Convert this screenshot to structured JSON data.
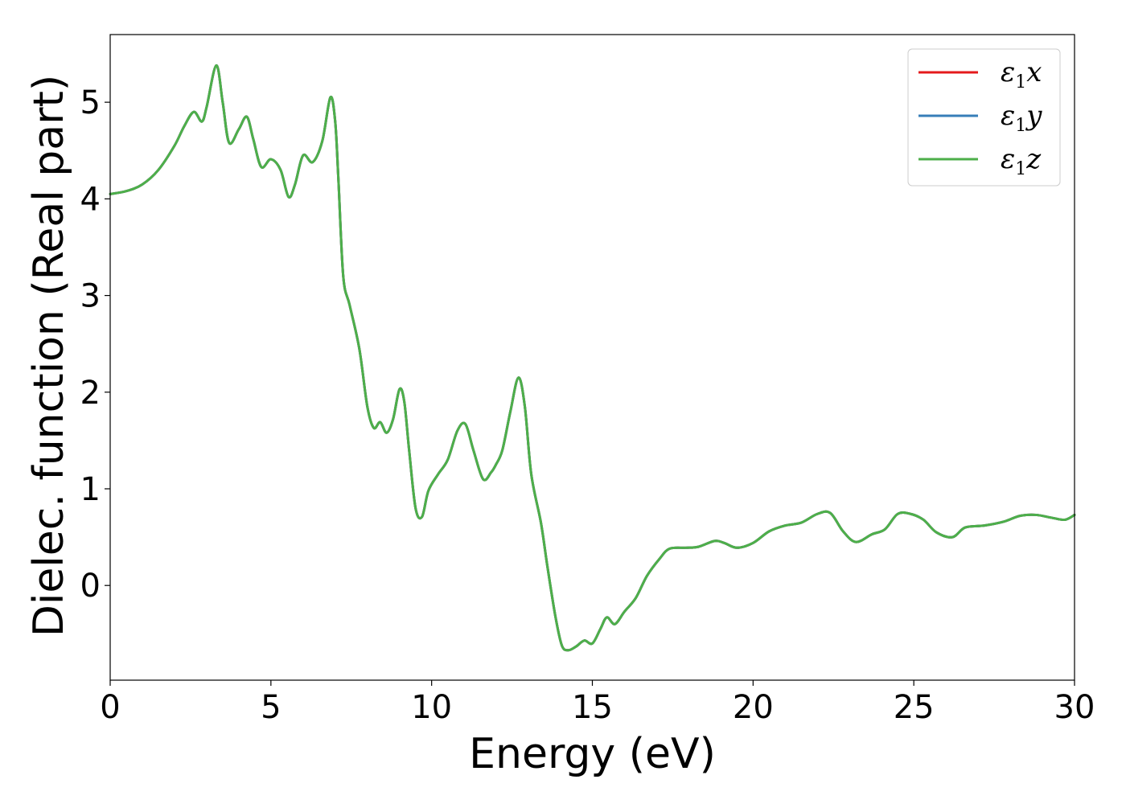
{
  "chart_data": {
    "type": "line",
    "xlabel": "Energy (eV)",
    "ylabel": "Dielec. function (Real part)",
    "xlim": [
      0,
      30
    ],
    "ylim": [
      -0.98,
      5.7
    ],
    "x_ticks": [
      0,
      5,
      10,
      15,
      20,
      25,
      30
    ],
    "y_ticks": [
      0,
      1,
      2,
      3,
      4,
      5
    ],
    "grid": false,
    "legend_position": "top-right",
    "legend": [
      {
        "symbol": "ε",
        "sub": "1",
        "suffix": "x",
        "color": "#e41a1c"
      },
      {
        "symbol": "ε",
        "sub": "1",
        "suffix": "y",
        "color": "#377eb8"
      },
      {
        "symbol": "ε",
        "sub": "1",
        "suffix": "z",
        "color": "#4daf4a"
      }
    ],
    "x": [
      0,
      0.5,
      1.0,
      1.5,
      2.0,
      2.3,
      2.6,
      2.85,
      3.0,
      3.3,
      3.5,
      3.7,
      4.0,
      4.25,
      4.45,
      4.7,
      5.0,
      5.3,
      5.55,
      5.75,
      6.0,
      6.3,
      6.6,
      6.85,
      7.0,
      7.1,
      7.25,
      7.45,
      7.75,
      8.0,
      8.2,
      8.4,
      8.6,
      8.8,
      9.0,
      9.15,
      9.3,
      9.5,
      9.7,
      9.9,
      10.2,
      10.5,
      10.8,
      11.05,
      11.3,
      11.6,
      11.85,
      12.0,
      12.2,
      12.45,
      12.7,
      12.9,
      13.1,
      13.4,
      13.6,
      13.85,
      14.05,
      14.25,
      14.5,
      14.75,
      15.0,
      15.25,
      15.45,
      15.7,
      16.0,
      16.35,
      16.7,
      17.1,
      17.4,
      17.9,
      18.3,
      18.8,
      19.1,
      19.5,
      20.0,
      20.5,
      21.0,
      21.5,
      22.0,
      22.4,
      22.8,
      23.2,
      23.7,
      24.1,
      24.5,
      24.9,
      25.3,
      25.7,
      26.2,
      26.6,
      27.2,
      27.8,
      28.3,
      28.8,
      29.3,
      29.7,
      30.0
    ],
    "series": [
      {
        "name": "ε1x",
        "color": "#e41a1c",
        "values": [
          4.05,
          4.08,
          4.15,
          4.3,
          4.55,
          4.75,
          4.9,
          4.8,
          4.95,
          5.38,
          5.0,
          4.58,
          4.72,
          4.85,
          4.62,
          4.33,
          4.41,
          4.3,
          4.02,
          4.15,
          4.45,
          4.38,
          4.6,
          5.05,
          4.8,
          4.2,
          3.2,
          2.9,
          2.45,
          1.85,
          1.63,
          1.69,
          1.58,
          1.72,
          2.03,
          1.9,
          1.4,
          0.8,
          0.71,
          0.98,
          1.15,
          1.3,
          1.6,
          1.67,
          1.4,
          1.1,
          1.17,
          1.25,
          1.4,
          1.8,
          2.15,
          1.85,
          1.15,
          0.65,
          0.2,
          -0.32,
          -0.62,
          -0.67,
          -0.63,
          -0.57,
          -0.6,
          -0.45,
          -0.33,
          -0.4,
          -0.27,
          -0.13,
          0.1,
          0.28,
          0.38,
          0.39,
          0.4,
          0.46,
          0.44,
          0.39,
          0.44,
          0.56,
          0.62,
          0.65,
          0.74,
          0.75,
          0.56,
          0.45,
          0.53,
          0.58,
          0.74,
          0.74,
          0.68,
          0.55,
          0.5,
          0.6,
          0.62,
          0.66,
          0.72,
          0.73,
          0.7,
          0.68,
          0.73
        ]
      },
      {
        "name": "ε1y",
        "color": "#377eb8",
        "values": [
          4.05,
          4.08,
          4.15,
          4.3,
          4.55,
          4.75,
          4.9,
          4.8,
          4.95,
          5.38,
          5.0,
          4.58,
          4.72,
          4.85,
          4.62,
          4.33,
          4.41,
          4.3,
          4.02,
          4.15,
          4.45,
          4.38,
          4.6,
          5.05,
          4.8,
          4.2,
          3.2,
          2.9,
          2.45,
          1.85,
          1.63,
          1.69,
          1.58,
          1.72,
          2.03,
          1.9,
          1.4,
          0.8,
          0.71,
          0.98,
          1.15,
          1.3,
          1.6,
          1.67,
          1.4,
          1.1,
          1.17,
          1.25,
          1.4,
          1.8,
          2.15,
          1.85,
          1.15,
          0.65,
          0.2,
          -0.32,
          -0.62,
          -0.67,
          -0.63,
          -0.57,
          -0.6,
          -0.45,
          -0.33,
          -0.4,
          -0.27,
          -0.13,
          0.1,
          0.28,
          0.38,
          0.39,
          0.4,
          0.46,
          0.44,
          0.39,
          0.44,
          0.56,
          0.62,
          0.65,
          0.74,
          0.75,
          0.56,
          0.45,
          0.53,
          0.58,
          0.74,
          0.74,
          0.68,
          0.55,
          0.5,
          0.6,
          0.62,
          0.66,
          0.72,
          0.73,
          0.7,
          0.68,
          0.73
        ]
      },
      {
        "name": "ε1z",
        "color": "#4daf4a",
        "values": [
          4.05,
          4.08,
          4.15,
          4.3,
          4.55,
          4.75,
          4.9,
          4.8,
          4.95,
          5.38,
          5.0,
          4.58,
          4.72,
          4.85,
          4.62,
          4.33,
          4.41,
          4.3,
          4.02,
          4.15,
          4.45,
          4.38,
          4.6,
          5.05,
          4.8,
          4.2,
          3.2,
          2.9,
          2.45,
          1.85,
          1.63,
          1.69,
          1.58,
          1.72,
          2.03,
          1.9,
          1.4,
          0.8,
          0.71,
          0.98,
          1.15,
          1.3,
          1.6,
          1.67,
          1.4,
          1.1,
          1.17,
          1.25,
          1.4,
          1.8,
          2.15,
          1.85,
          1.15,
          0.65,
          0.2,
          -0.32,
          -0.62,
          -0.67,
          -0.63,
          -0.57,
          -0.6,
          -0.45,
          -0.33,
          -0.4,
          -0.27,
          -0.13,
          0.1,
          0.28,
          0.38,
          0.39,
          0.4,
          0.46,
          0.44,
          0.39,
          0.44,
          0.56,
          0.62,
          0.65,
          0.74,
          0.75,
          0.56,
          0.45,
          0.53,
          0.58,
          0.74,
          0.74,
          0.68,
          0.55,
          0.5,
          0.6,
          0.62,
          0.66,
          0.72,
          0.73,
          0.7,
          0.68,
          0.73
        ]
      }
    ]
  }
}
